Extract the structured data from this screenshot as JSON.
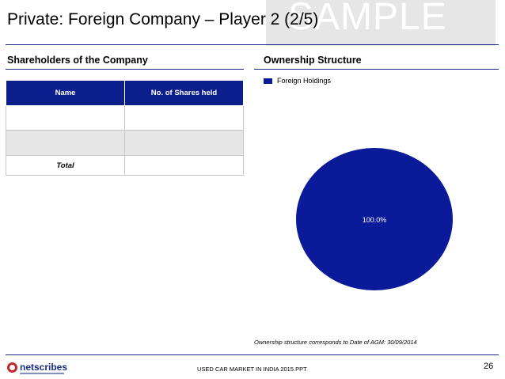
{
  "slide": {
    "title": "Private: Foreign Company – Player 2 (2/5)",
    "watermark": "SAMPLE"
  },
  "left": {
    "heading": "Shareholders of the Company",
    "table": {
      "headers": [
        "Name",
        "No. of Shares held"
      ],
      "rows": [
        [
          "",
          ""
        ],
        [
          "",
          ""
        ]
      ],
      "total_label": "Total",
      "total_value": ""
    }
  },
  "right": {
    "heading": "Ownership Structure",
    "note": "Ownership structure corresponds to Date of AGM: 30/09/2014"
  },
  "chart_data": {
    "type": "pie",
    "labels": [
      "Foreign Holdings"
    ],
    "values": [
      100.0
    ],
    "data_labels": [
      "100.0%"
    ],
    "colors": [
      "#0b1a99"
    ],
    "legend": "top-left"
  },
  "footer": {
    "logo_text": "netscribes",
    "text": "USED CAR MARKET IN INDIA 2015.PPT",
    "page_number": "26"
  },
  "colors": {
    "accent": "#1a2a8a",
    "table_header": "#0d1f8c",
    "pie_fill": "#0b1a99",
    "logo_red": "#c0272d"
  }
}
